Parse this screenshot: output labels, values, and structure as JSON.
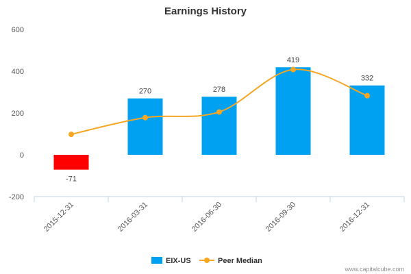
{
  "chart_data": {
    "type": "bar",
    "title": "Earnings History",
    "xlabel": "",
    "ylabel": "",
    "categories": [
      "2015-12-31",
      "2016-03-31",
      "2016-06-30",
      "2016-09-30",
      "2016-12-31"
    ],
    "ylim": [
      -200,
      600
    ],
    "yticks": [
      -200,
      0,
      200,
      400,
      600
    ],
    "grid": false,
    "legend_position": "bottom",
    "series": [
      {
        "name": "EIX-US",
        "kind": "bar",
        "color": "#00a1f1",
        "negative_color": "#ff0000",
        "values": [
          -71,
          270,
          278,
          419,
          332
        ],
        "labels": [
          "-71",
          "270",
          "278",
          "419",
          "332"
        ]
      },
      {
        "name": "Peer Median",
        "kind": "line",
        "color": "#f5a623",
        "values": [
          98,
          178,
          205,
          408,
          283
        ]
      }
    ]
  },
  "credit": "www.capitalcube.com"
}
